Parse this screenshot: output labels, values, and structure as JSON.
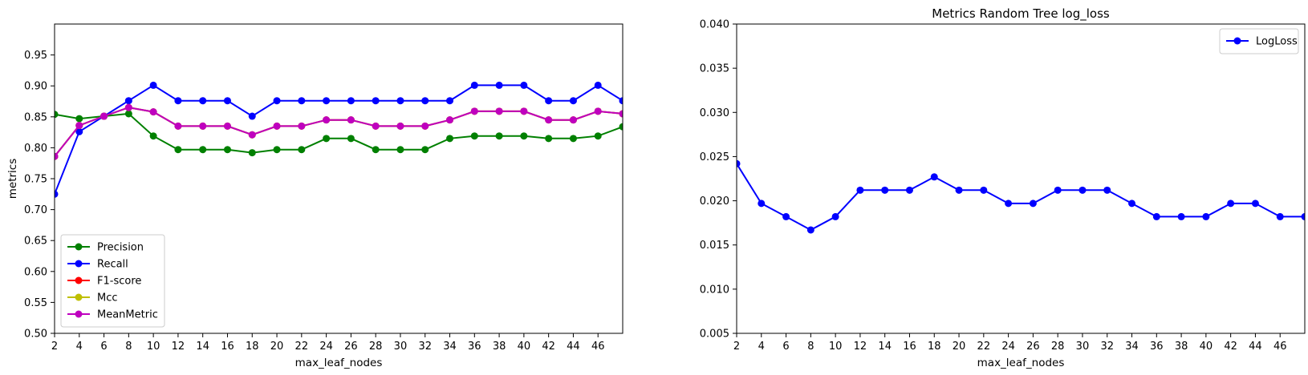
{
  "chart_data": [
    {
      "type": "line",
      "title": "",
      "xlabel": "max_leaf_nodes",
      "ylabel": "metrics",
      "xlim": [
        2,
        48
      ],
      "ylim": [
        0.5,
        1.0
      ],
      "xticks": [
        2,
        4,
        6,
        8,
        10,
        12,
        14,
        16,
        18,
        20,
        22,
        24,
        26,
        28,
        30,
        32,
        34,
        36,
        38,
        40,
        42,
        44,
        46
      ],
      "yticks": [
        0.5,
        0.55,
        0.6,
        0.65,
        0.7,
        0.75,
        0.8,
        0.85,
        0.9,
        0.95
      ],
      "ytick_labels": [
        "0.50",
        "0.55",
        "0.60",
        "0.65",
        "0.70",
        "0.75",
        "0.80",
        "0.85",
        "0.90",
        "0.95"
      ],
      "legend": "lower-left",
      "grid": false,
      "x": [
        2,
        4,
        6,
        8,
        10,
        12,
        14,
        16,
        18,
        20,
        22,
        24,
        26,
        28,
        30,
        32,
        34,
        36,
        38,
        40,
        42,
        44,
        46,
        48
      ],
      "series": [
        {
          "name": "Precision",
          "color": "#008000",
          "values": [
            0.854,
            0.847,
            0.851,
            0.855,
            0.819,
            0.797,
            0.797,
            0.797,
            0.792,
            0.797,
            0.797,
            0.815,
            0.815,
            0.797,
            0.797,
            0.797,
            0.815,
            0.819,
            0.819,
            0.819,
            0.815,
            0.815,
            0.819,
            0.834
          ]
        },
        {
          "name": "Recall",
          "color": "#0000ff",
          "values": [
            0.725,
            0.826,
            0.851,
            0.876,
            0.901,
            0.876,
            0.876,
            0.876,
            0.851,
            0.876,
            0.876,
            0.876,
            0.876,
            0.876,
            0.876,
            0.876,
            0.876,
            0.901,
            0.901,
            0.901,
            0.876,
            0.876,
            0.901,
            0.876
          ]
        },
        {
          "name": "F1-score",
          "color": "#ff0000",
          "values": [
            0.786,
            0.836,
            0.851,
            0.865,
            0.858,
            0.835,
            0.835,
            0.835,
            0.821,
            0.835,
            0.835,
            0.845,
            0.845,
            0.835,
            0.835,
            0.835,
            0.845,
            0.859,
            0.859,
            0.859,
            0.845,
            0.845,
            0.859,
            0.855
          ]
        },
        {
          "name": "Mcc",
          "color": "#bfbf00",
          "values": [
            0.786,
            0.836,
            0.851,
            0.865,
            0.858,
            0.835,
            0.835,
            0.835,
            0.821,
            0.835,
            0.835,
            0.845,
            0.845,
            0.835,
            0.835,
            0.835,
            0.845,
            0.859,
            0.859,
            0.859,
            0.845,
            0.845,
            0.859,
            0.855
          ]
        },
        {
          "name": "MeanMetric",
          "color": "#bf00bf",
          "values": [
            0.786,
            0.836,
            0.851,
            0.865,
            0.858,
            0.835,
            0.835,
            0.835,
            0.821,
            0.835,
            0.835,
            0.845,
            0.845,
            0.835,
            0.835,
            0.835,
            0.845,
            0.859,
            0.859,
            0.859,
            0.845,
            0.845,
            0.859,
            0.855
          ]
        }
      ]
    },
    {
      "type": "line",
      "title": "Metrics Random Tree log_loss",
      "xlabel": "max_leaf_nodes",
      "ylabel": "",
      "xlim": [
        2,
        48
      ],
      "ylim": [
        0.005,
        0.04
      ],
      "xticks": [
        2,
        4,
        6,
        8,
        10,
        12,
        14,
        16,
        18,
        20,
        22,
        24,
        26,
        28,
        30,
        32,
        34,
        36,
        38,
        40,
        42,
        44,
        46
      ],
      "yticks": [
        0.005,
        0.01,
        0.015,
        0.02,
        0.025,
        0.03,
        0.035,
        0.04
      ],
      "ytick_labels": [
        "0.005",
        "0.010",
        "0.015",
        "0.020",
        "0.025",
        "0.030",
        "0.035",
        "0.040"
      ],
      "legend": "upper-right",
      "grid": false,
      "x": [
        2,
        4,
        6,
        8,
        10,
        12,
        14,
        16,
        18,
        20,
        22,
        24,
        26,
        28,
        30,
        32,
        34,
        36,
        38,
        40,
        42,
        44,
        46,
        48
      ],
      "series": [
        {
          "name": "LogLoss",
          "color": "#0000ff",
          "values": [
            0.0242,
            0.0197,
            0.0182,
            0.0167,
            0.0182,
            0.0212,
            0.0212,
            0.0212,
            0.0227,
            0.0212,
            0.0212,
            0.0197,
            0.0197,
            0.0212,
            0.0212,
            0.0212,
            0.0197,
            0.0182,
            0.0182,
            0.0182,
            0.0197,
            0.0197,
            0.0182,
            0.0182
          ]
        }
      ]
    }
  ]
}
